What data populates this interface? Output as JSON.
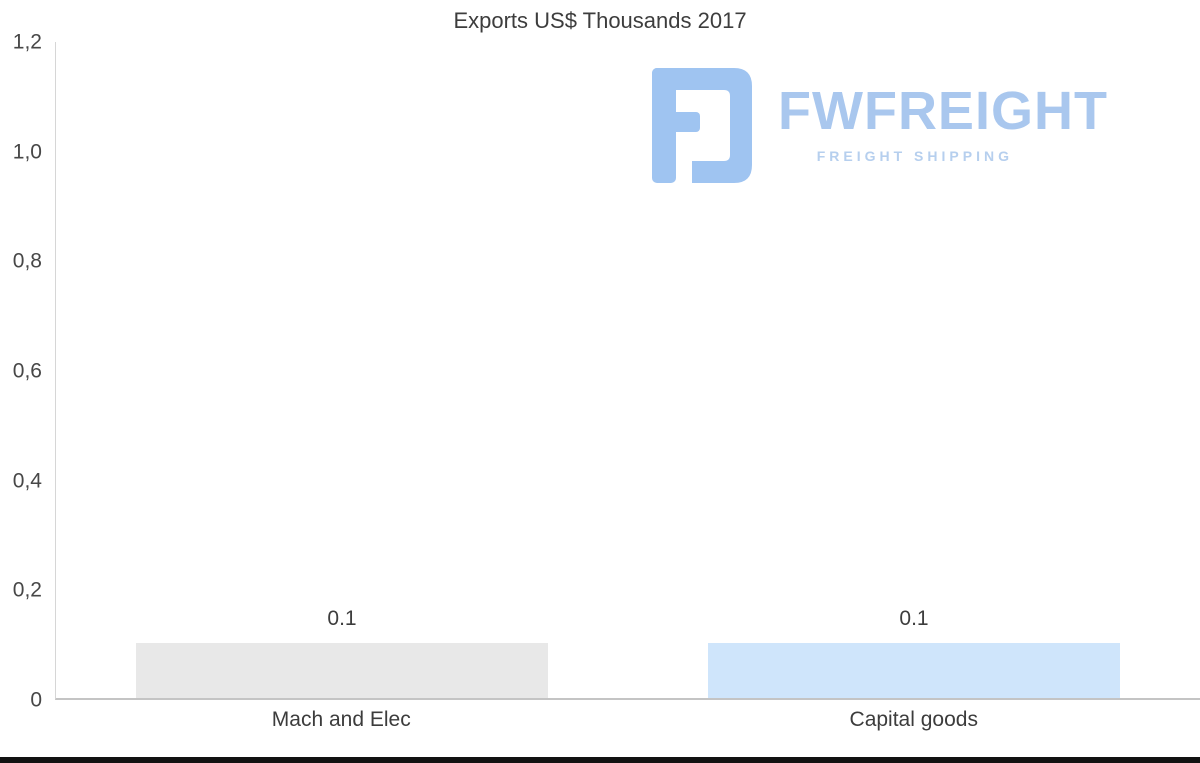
{
  "title": "Exports US$ Thousands 2017",
  "watermark": {
    "brand": "FWFREIGHT",
    "tagline": "FREIGHT SHIPPING",
    "icon_color": "#9fc4f1",
    "brand_color": "#a9c7ee",
    "tagline_color": "#b6cfee"
  },
  "chart_data": {
    "type": "bar",
    "title": "Exports US$ Thousands 2017",
    "categories": [
      "Mach and Elec",
      "Capital goods"
    ],
    "values": [
      0.1,
      0.1
    ],
    "value_labels": [
      "0.1",
      "0.1"
    ],
    "bar_colors": [
      "#e8e8e8",
      "#cfe5fb"
    ],
    "xlabel": "",
    "ylabel": "",
    "ylim": [
      0,
      1.2
    ],
    "yticks": [
      {
        "value": 0,
        "label": "0"
      },
      {
        "value": 0.2,
        "label": "0,2"
      },
      {
        "value": 0.4,
        "label": "0,4"
      },
      {
        "value": 0.6,
        "label": "0,6"
      },
      {
        "value": 0.8,
        "label": "0,8"
      },
      {
        "value": 1.0,
        "label": "1,0"
      },
      {
        "value": 1.2,
        "label": "1,2"
      }
    ],
    "grid": false,
    "legend": false
  }
}
